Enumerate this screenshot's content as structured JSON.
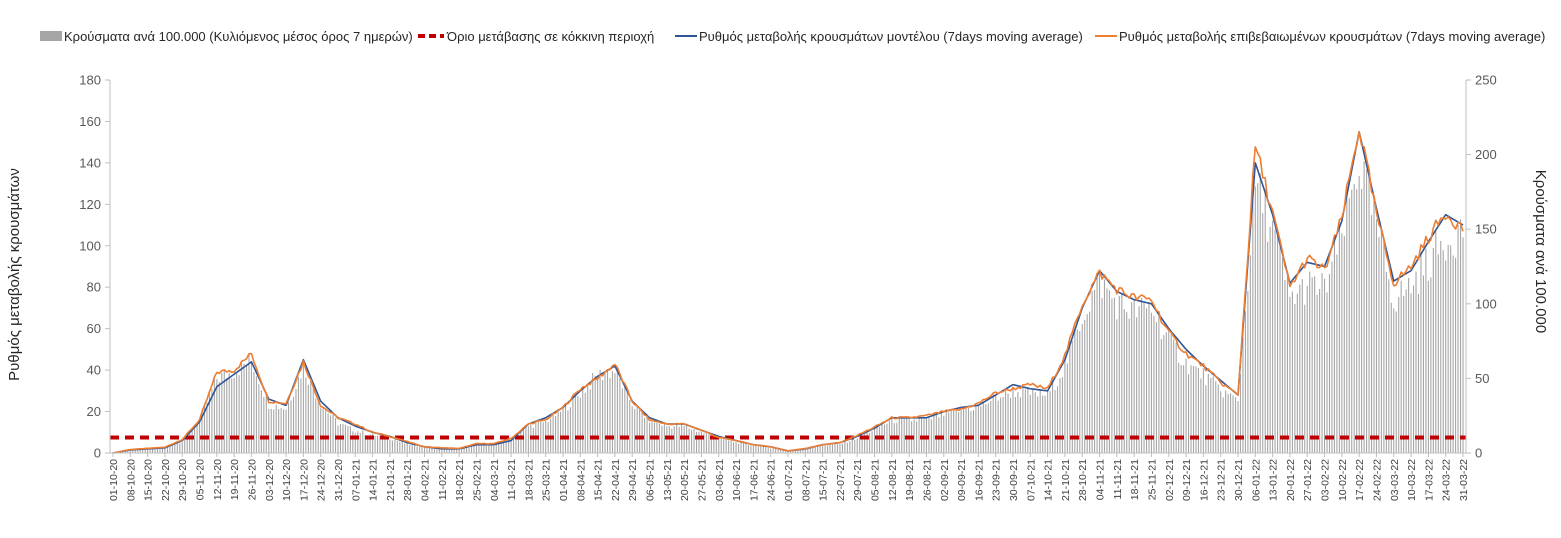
{
  "chart_data": {
    "type": "bar+line",
    "legend": {
      "position": "top",
      "items": [
        {
          "key": "cases",
          "label": "Κρούσματα ανά 100.000 (Κυλιόμενος μέσος όρος 7 ημερών)",
          "kind": "bar",
          "color": "#a6a6a6"
        },
        {
          "key": "threshold",
          "label": "Όριο μετάβασης σε κόκκινη περιοχή",
          "kind": "dashed",
          "color": "#c00000"
        },
        {
          "key": "model",
          "label": "Ρυθμός μεταβολής κρουσμάτων μοντέλου (7days moving average)",
          "kind": "line",
          "color": "#2f5597"
        },
        {
          "key": "confirmed",
          "label": "Ρυθμός μεταβολής επιβεβαιωμένων κρουσμάτων (7days moving average)",
          "kind": "line",
          "color": "#ed7d31"
        }
      ]
    },
    "left_axis": {
      "label": "Ρυθμός μεταβολής κρουσμάτων",
      "min": 0,
      "max": 180,
      "step": 20,
      "ticks": [
        "0",
        "20",
        "40",
        "60",
        "80",
        "100",
        "120",
        "140",
        "160",
        "180"
      ]
    },
    "right_axis": {
      "label": "Κρούσματα ανά 100.000",
      "min": 0,
      "max": 250,
      "step": 50,
      "ticks": [
        "0",
        "50",
        "100",
        "150",
        "200",
        "250"
      ]
    },
    "x_tick_labels": [
      "01-10-20",
      "08-10-20",
      "15-10-20",
      "22-10-20",
      "29-10-20",
      "05-11-20",
      "12-11-20",
      "19-11-20",
      "26-11-20",
      "03-12-20",
      "10-12-20",
      "17-12-20",
      "24-12-20",
      "31-12-20",
      "07-01-21",
      "14-01-21",
      "21-01-21",
      "28-01-21",
      "04-02-21",
      "11-02-21",
      "18-02-21",
      "25-02-21",
      "04-03-21",
      "11-03-21",
      "18-03-21",
      "25-03-21",
      "01-04-21",
      "08-04-21",
      "15-04-21",
      "22-04-21",
      "29-04-21",
      "06-05-21",
      "13-05-21",
      "20-05-21",
      "27-05-21",
      "03-06-21",
      "10-06-21",
      "17-06-21",
      "24-06-21",
      "01-07-21",
      "08-07-21",
      "15-07-21",
      "22-07-21",
      "29-07-21",
      "05-08-21",
      "12-08-21",
      "19-08-21",
      "26-08-21",
      "02-09-21",
      "09-09-21",
      "16-09-21",
      "23-09-21",
      "30-09-21",
      "07-10-21",
      "14-10-21",
      "21-10-21",
      "28-10-21",
      "04-11-21",
      "11-11-21",
      "18-11-21",
      "25-11-21",
      "02-12-21",
      "09-12-21",
      "16-12-21",
      "23-12-21",
      "30-12-21",
      "06-01-22",
      "13-01-22",
      "20-01-22",
      "27-01-22",
      "03-02-22",
      "10-02-22",
      "17-02-22",
      "24-02-22",
      "03-03-22",
      "10-03-22",
      "17-03-22",
      "24-03-22",
      "31-03-22"
    ],
    "threshold_left_value": 7.5,
    "series": {
      "model_weekly": [
        0,
        1.5,
        2,
        2.5,
        6,
        15,
        32,
        38,
        44,
        26,
        23,
        45,
        25,
        17,
        13,
        10,
        8,
        5,
        3,
        2,
        2,
        4,
        4,
        6,
        14,
        17,
        22,
        30,
        37,
        42,
        25,
        17,
        14,
        14,
        11,
        8,
        6,
        4,
        3,
        1,
        2,
        4,
        5,
        8,
        12,
        17,
        17,
        17,
        20,
        22,
        23,
        28,
        33,
        31,
        30,
        45,
        70,
        88,
        78,
        74,
        72,
        60,
        50,
        42,
        35,
        28,
        140,
        115,
        82,
        92,
        90,
        112,
        155,
        118,
        83,
        88,
        102,
        115,
        110
      ],
      "confirmed_weekly": [
        0,
        1.7,
        2.2,
        2.8,
        6.5,
        16,
        39,
        40,
        48,
        25,
        24,
        44,
        23,
        17,
        14,
        10,
        8,
        5.5,
        3,
        2.5,
        2.2,
        4.5,
        4.5,
        7,
        14,
        16,
        22,
        31,
        36,
        43,
        25,
        16,
        14,
        14,
        11,
        7.5,
        6,
        4,
        3,
        1,
        2.2,
        4,
        5,
        8.5,
        12.5,
        17,
        17,
        18,
        20,
        21,
        24,
        29,
        31,
        33,
        31,
        47,
        72,
        87,
        79,
        75,
        74,
        58,
        48,
        42,
        34,
        28,
        148,
        116,
        80,
        94,
        88,
        113,
        157,
        115,
        82,
        90,
        104,
        116,
        108
      ],
      "cases_weekly": [
        0.5,
        2.5,
        3,
        4,
        8,
        22,
        50,
        55,
        62,
        33,
        30,
        58,
        33,
        20,
        15,
        12,
        10,
        6,
        4,
        3,
        3,
        5,
        6,
        9,
        18,
        21,
        29,
        40,
        52,
        55,
        33,
        22,
        18,
        18,
        14,
        10,
        7,
        5,
        3.5,
        1.5,
        3,
        5,
        6,
        10,
        16,
        22,
        22,
        22,
        26,
        29,
        31,
        37,
        41,
        40,
        39,
        58,
        92,
        115,
        100,
        95,
        97,
        76,
        60,
        52,
        42,
        35,
        180,
        150,
        103,
        112,
        110,
        145,
        195,
        152,
        103,
        112,
        128,
        143,
        150
      ]
    }
  }
}
